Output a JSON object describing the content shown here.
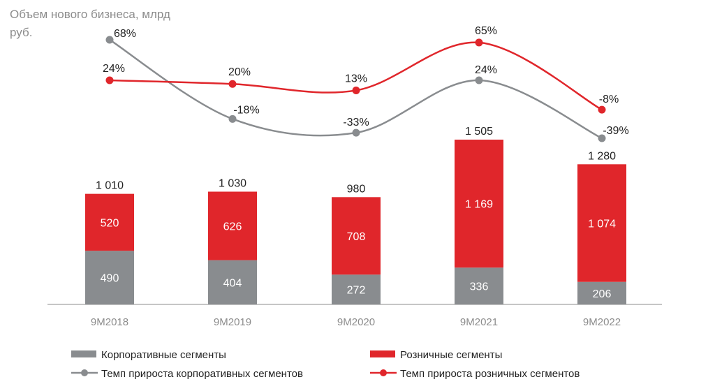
{
  "chart_data": {
    "type": "bar",
    "title": "Объем нового бизнеса, млрд руб.",
    "categories": [
      "9M2018",
      "9M2019",
      "9M2020",
      "9M2021",
      "9M2022"
    ],
    "series": [
      {
        "name": "Корпоративные сегменты",
        "type": "bar",
        "color": "#898c8f",
        "values": [
          490,
          404,
          272,
          336,
          206
        ],
        "labels": [
          "490",
          "404",
          "272",
          "336",
          "206"
        ]
      },
      {
        "name": "Розничные сегменты",
        "type": "bar",
        "color": "#e0262b",
        "values": [
          520,
          626,
          708,
          1169,
          1074
        ],
        "labels": [
          "520",
          "626",
          "708",
          "1 169",
          "1 074"
        ]
      },
      {
        "name": "Темп прироста корпоративных сегментов",
        "type": "line",
        "color": "#898c8f",
        "values": [
          68,
          -18,
          -33,
          24,
          -39
        ],
        "labels": [
          "68%",
          "-18%",
          "-33%",
          "24%",
          "-39%"
        ]
      },
      {
        "name": "Темп прироста розничных сегментов",
        "type": "line",
        "color": "#e0262b",
        "values": [
          24,
          20,
          13,
          65,
          -8
        ],
        "labels": [
          "24%",
          "20%",
          "13%",
          "65%",
          "-8%"
        ]
      }
    ],
    "totals": [
      1010,
      1030,
      980,
      1505,
      1280
    ],
    "total_labels": [
      "1 010",
      "1 030",
      "980",
      "1 505",
      "1 280"
    ],
    "legend": "bottom"
  }
}
